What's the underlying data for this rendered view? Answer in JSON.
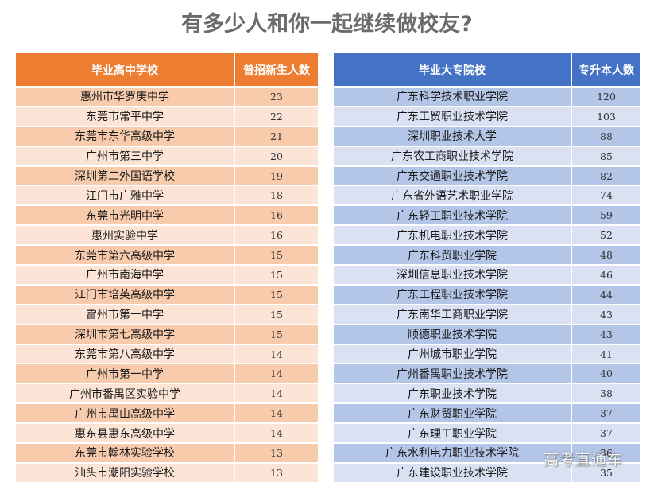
{
  "title": "有多少人和你一起继续做校友?",
  "watermark": "高考直通车",
  "colors": {
    "left_header": "#ed7d31",
    "left_row_dark": "#f8cbad",
    "left_row_light": "#fce4d6",
    "right_header": "#4472c4",
    "right_row_dark": "#b4c6e7",
    "right_row_light": "#d9e1f2"
  },
  "left_table": {
    "headers": [
      "毕业高中学校",
      "普招新生人数"
    ],
    "rows": [
      {
        "school": "惠州市华罗庚中学",
        "count": "23"
      },
      {
        "school": "东莞市常平中学",
        "count": "22"
      },
      {
        "school": "东莞市东华高级中学",
        "count": "21"
      },
      {
        "school": "广州市第三中学",
        "count": "20"
      },
      {
        "school": "深圳第二外国语学校",
        "count": "19"
      },
      {
        "school": "江门市广雅中学",
        "count": "18"
      },
      {
        "school": "东莞市光明中学",
        "count": "16"
      },
      {
        "school": "惠州实验中学",
        "count": "16"
      },
      {
        "school": "东莞市第六高级中学",
        "count": "15"
      },
      {
        "school": "广州市南海中学",
        "count": "15"
      },
      {
        "school": "江门市培英高级中学",
        "count": "15"
      },
      {
        "school": "雷州市第一中学",
        "count": "15"
      },
      {
        "school": "深圳市第七高级中学",
        "count": "15"
      },
      {
        "school": "东莞市第八高级中学",
        "count": "14"
      },
      {
        "school": "广州市第一中学",
        "count": "14"
      },
      {
        "school": "广州市番禺区实验中学",
        "count": "14"
      },
      {
        "school": "广州市禺山高级中学",
        "count": "14"
      },
      {
        "school": "惠东县惠东高级中学",
        "count": "14"
      },
      {
        "school": "东莞市翰林实验学校",
        "count": "13"
      },
      {
        "school": "汕头市潮阳实验学校",
        "count": "13"
      }
    ]
  },
  "right_table": {
    "headers": [
      "毕业大专院校",
      "专升本人数"
    ],
    "rows": [
      {
        "school": "广东科学技术职业学院",
        "count": "120"
      },
      {
        "school": "广东工贸职业技术学院",
        "count": "103"
      },
      {
        "school": "深圳职业技术大学",
        "count": "88"
      },
      {
        "school": "广东农工商职业技术学院",
        "count": "85"
      },
      {
        "school": "广东交通职业技术学院",
        "count": "82"
      },
      {
        "school": "广东省外语艺术职业学院",
        "count": "74"
      },
      {
        "school": "广东轻工职业技术学院",
        "count": "59"
      },
      {
        "school": "广东机电职业技术学院",
        "count": "52"
      },
      {
        "school": "广东科贸职业学院",
        "count": "48"
      },
      {
        "school": "深圳信息职业技术学院",
        "count": "46"
      },
      {
        "school": "广东工程职业技术学院",
        "count": "44"
      },
      {
        "school": "广东南华工商职业学院",
        "count": "43"
      },
      {
        "school": "顺德职业技术学院",
        "count": "43"
      },
      {
        "school": "广州城市职业学院",
        "count": "41"
      },
      {
        "school": "广州番禺职业技术学院",
        "count": "40"
      },
      {
        "school": "广东职业技术学院",
        "count": "38"
      },
      {
        "school": "广东财贸职业学院",
        "count": "37"
      },
      {
        "school": "广东理工职业学院",
        "count": "37"
      },
      {
        "school": "广东水利电力职业技术学院",
        "count": "36"
      },
      {
        "school": "广东建设职业技术学院",
        "count": "35"
      }
    ]
  }
}
